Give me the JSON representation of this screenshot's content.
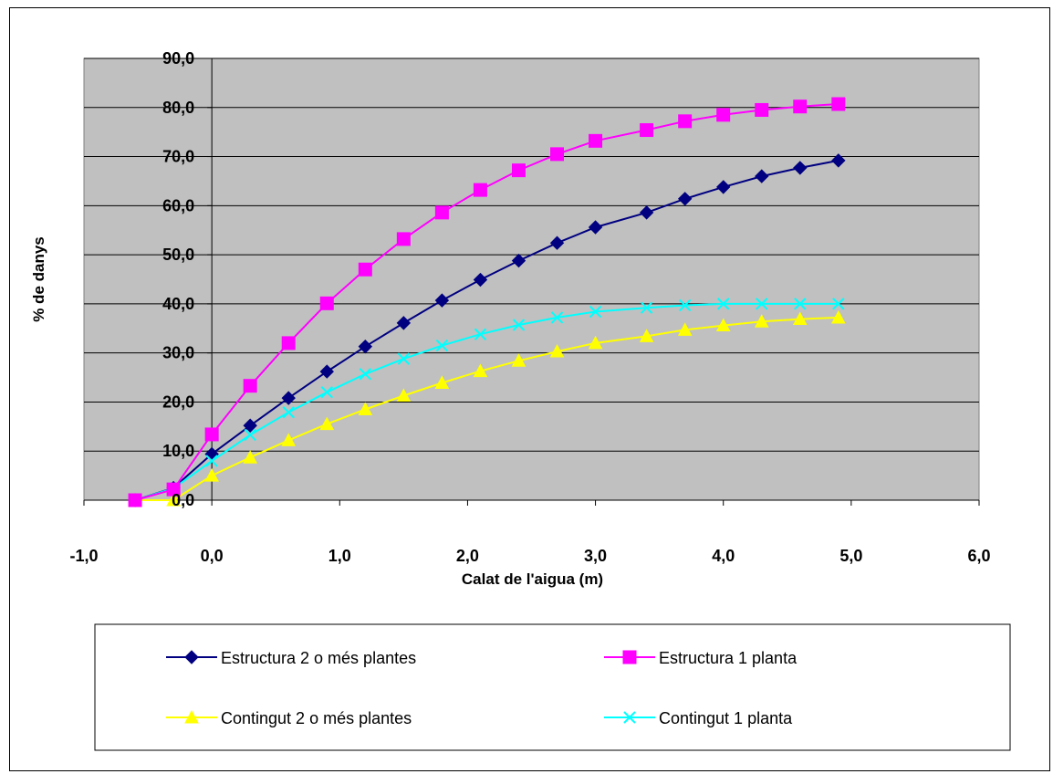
{
  "chart_data": {
    "type": "line",
    "xlabel": "Calat de l'aigua (m)",
    "ylabel": "% de danys",
    "xlim": [
      -1,
      6
    ],
    "ylim": [
      0,
      90
    ],
    "x_ticks": [
      "-1,0",
      "0,0",
      "1,0",
      "2,0",
      "3,0",
      "4,0",
      "5,0",
      "6,0"
    ],
    "y_ticks": [
      "0,0",
      "10,0",
      "20,0",
      "30,0",
      "40,0",
      "50,0",
      "60,0",
      "70,0",
      "80,0",
      "90,0"
    ],
    "grid": "horizontal",
    "legend_position": "bottom",
    "x": [
      -0.6,
      -0.3,
      0.0,
      0.3,
      0.6,
      0.9,
      1.2,
      1.5,
      1.8,
      2.1,
      2.4,
      2.7,
      3.0,
      3.4,
      3.7,
      4.0,
      4.3,
      4.6,
      4.9
    ],
    "series": [
      {
        "name": "Estructura 2 o més plantes",
        "color": "#000080",
        "marker": "diamond",
        "values": [
          0,
          2.5,
          9.4,
          15.2,
          20.8,
          26.2,
          31.3,
          36.1,
          40.7,
          44.9,
          48.8,
          52.4,
          55.6,
          58.6,
          61.4,
          63.8,
          66.0,
          67.7,
          69.2
        ]
      },
      {
        "name": "Estructura 1 planta",
        "color": "#FF00FF",
        "marker": "square",
        "values": [
          0,
          2.2,
          13.4,
          23.3,
          32.0,
          40.1,
          47.0,
          53.2,
          58.6,
          63.2,
          67.2,
          70.5,
          73.2,
          75.4,
          77.2,
          78.5,
          79.5,
          80.2,
          80.7
        ]
      },
      {
        "name": "Contingut 2 o més plantes",
        "color": "#FFFF00",
        "marker": "triangle",
        "values": [
          0,
          0,
          5.0,
          8.7,
          12.2,
          15.5,
          18.5,
          21.3,
          23.9,
          26.3,
          28.4,
          30.3,
          32.0,
          33.4,
          34.7,
          35.6,
          36.4,
          36.9,
          37.2
        ]
      },
      {
        "name": "Contingut 1 planta",
        "color": "#00FFFF",
        "marker": "x",
        "values": [
          0,
          2.4,
          8.0,
          13.3,
          17.9,
          22.0,
          25.7,
          28.8,
          31.5,
          33.8,
          35.7,
          37.2,
          38.4,
          39.2,
          39.7,
          40.0,
          40.0,
          40.0,
          40.0
        ]
      }
    ],
    "colors": {
      "plot_bg": "#C0C0C0",
      "page_bg": "#FFFFFF",
      "grid": "#000000"
    }
  }
}
